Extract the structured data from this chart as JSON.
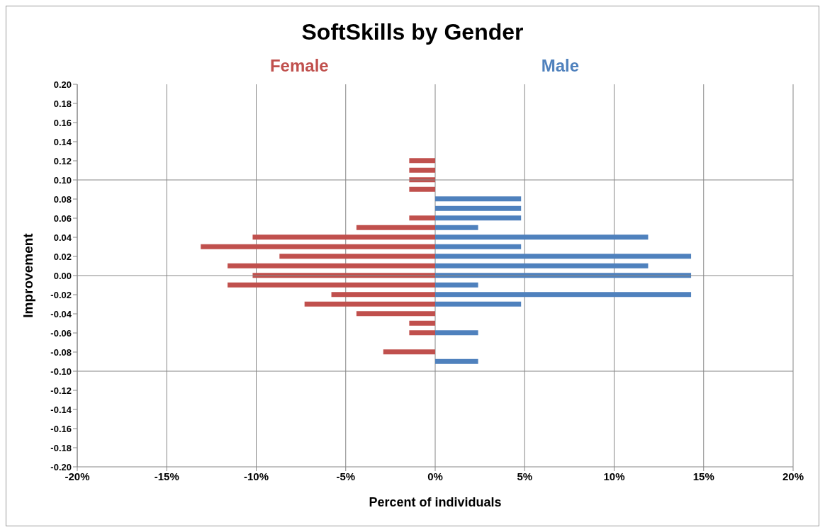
{
  "chart_data": {
    "type": "bar",
    "orientation": "horizontal",
    "stacked": true,
    "title": "SoftSkills by Gender",
    "xlabel": "Percent of individuals",
    "ylabel": "Improvement",
    "x": [
      0.12,
      0.11,
      0.1,
      0.09,
      0.08,
      0.07,
      0.06,
      0.05,
      0.04,
      0.03,
      0.02,
      0.01,
      0.0,
      -0.01,
      -0.02,
      -0.03,
      -0.04,
      -0.05,
      -0.06,
      -0.07,
      -0.08,
      -0.09
    ],
    "series": [
      {
        "name": "Female",
        "color": "#c0504d",
        "values": [
          -1.45,
          -1.45,
          -1.45,
          -1.45,
          null,
          null,
          -1.45,
          -4.4,
          -10.2,
          -13.1,
          -8.7,
          -11.6,
          -10.2,
          -11.6,
          -5.8,
          -7.3,
          -4.4,
          -1.45,
          -1.45,
          null,
          -2.9,
          null
        ]
      },
      {
        "name": "Male",
        "color": "#4f81bd",
        "values": [
          null,
          null,
          null,
          null,
          4.8,
          4.8,
          4.8,
          2.4,
          11.9,
          4.8,
          14.3,
          11.9,
          14.3,
          2.4,
          14.3,
          4.8,
          null,
          null,
          2.4,
          null,
          null,
          2.4
        ]
      }
    ],
    "xlim": [
      -20,
      20
    ],
    "xticks": [
      {
        "value": -20,
        "label": "-20%"
      },
      {
        "value": -15,
        "label": "-15%"
      },
      {
        "value": -10,
        "label": "-10%"
      },
      {
        "value": -5,
        "label": "-5%"
      },
      {
        "value": 0,
        "label": "0%"
      },
      {
        "value": 5,
        "label": "5%"
      },
      {
        "value": 10,
        "label": "10%"
      },
      {
        "value": 15,
        "label": "15%"
      },
      {
        "value": 20,
        "label": "20%"
      }
    ],
    "ylim": [
      -0.2,
      0.2
    ],
    "yticks": [
      {
        "value": 0.2,
        "label": "0.20"
      },
      {
        "value": 0.18,
        "label": "0.18"
      },
      {
        "value": 0.16,
        "label": "0.16"
      },
      {
        "value": 0.14,
        "label": "0.14"
      },
      {
        "value": 0.12,
        "label": "0.12"
      },
      {
        "value": 0.1,
        "label": "0.10"
      },
      {
        "value": 0.08,
        "label": "0.08"
      },
      {
        "value": 0.06,
        "label": "0.06"
      },
      {
        "value": 0.04,
        "label": "0.04"
      },
      {
        "value": 0.02,
        "label": "0.02"
      },
      {
        "value": 0,
        "label": "0.00"
      },
      {
        "value": -0.02,
        "label": "-0.02"
      },
      {
        "value": -0.04,
        "label": "-0.04"
      },
      {
        "value": -0.06,
        "label": "-0.06"
      },
      {
        "value": -0.08,
        "label": "-0.08"
      },
      {
        "value": -0.1,
        "label": "-0.10"
      },
      {
        "value": -0.12,
        "label": "-0.12"
      },
      {
        "value": -0.14,
        "label": "-0.14"
      },
      {
        "value": -0.16,
        "label": "-0.16"
      },
      {
        "value": -0.18,
        "label": "-0.18"
      },
      {
        "value": -0.2,
        "label": "-0.20"
      }
    ],
    "grid": "x",
    "ref_lines": [
      {
        "axis": "y",
        "value": 0.1,
        "color": "#868686"
      },
      {
        "axis": "y",
        "value": 0,
        "color": "#868686"
      },
      {
        "axis": "y",
        "value": -0.1,
        "color": "#868686"
      }
    ],
    "legend": "top"
  }
}
